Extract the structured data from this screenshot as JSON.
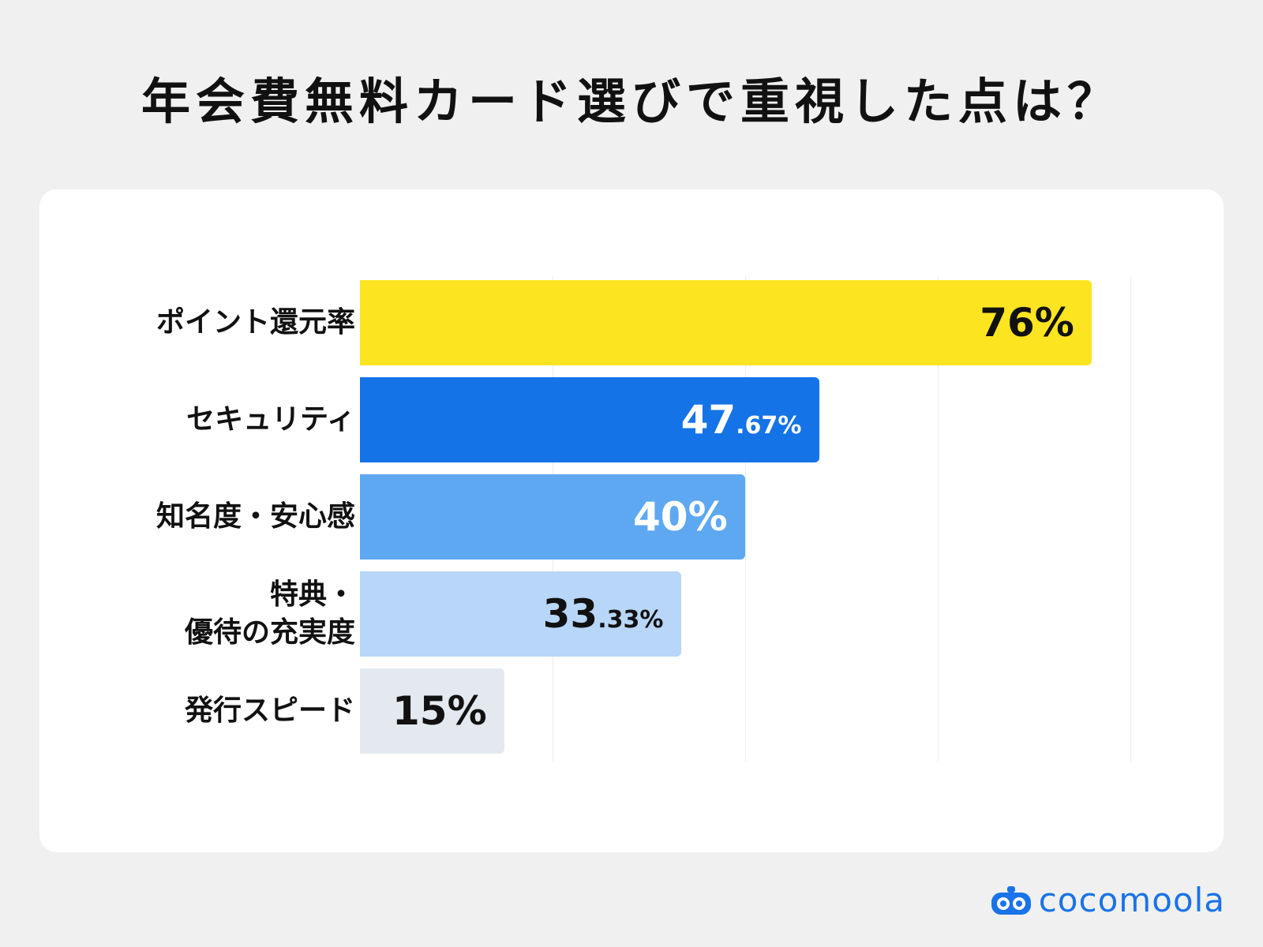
{
  "title": "年会費無料カード選びで重視した点は？",
  "brand": {
    "name": "cocomoola",
    "color": "#1a73e8"
  },
  "chart_data": {
    "type": "bar",
    "orientation": "horizontal",
    "xlim": [
      0,
      100
    ],
    "grid": true,
    "categories": [
      "ポイント還元率",
      "セキュリティ",
      "知名度・安心感",
      "特典・\n優待の充実度",
      "発行スピード"
    ],
    "values": [
      76,
      47.67,
      40,
      33.33,
      15
    ],
    "value_labels": [
      {
        "main": "76",
        "dec": "",
        "pct": "%"
      },
      {
        "main": "47",
        "dec": ".67",
        "pct": "%"
      },
      {
        "main": "40",
        "dec": "",
        "pct": "%"
      },
      {
        "main": "33",
        "dec": ".33",
        "pct": "%"
      },
      {
        "main": "15",
        "dec": "",
        "pct": "%"
      }
    ],
    "colors": [
      "#fde420",
      "#1473e6",
      "#5ea8f2",
      "#b8d6f8",
      "#e4e9f0"
    ],
    "label_colors": [
      "#111111",
      "#ffffff",
      "#ffffff",
      "#111111",
      "#111111"
    ]
  }
}
